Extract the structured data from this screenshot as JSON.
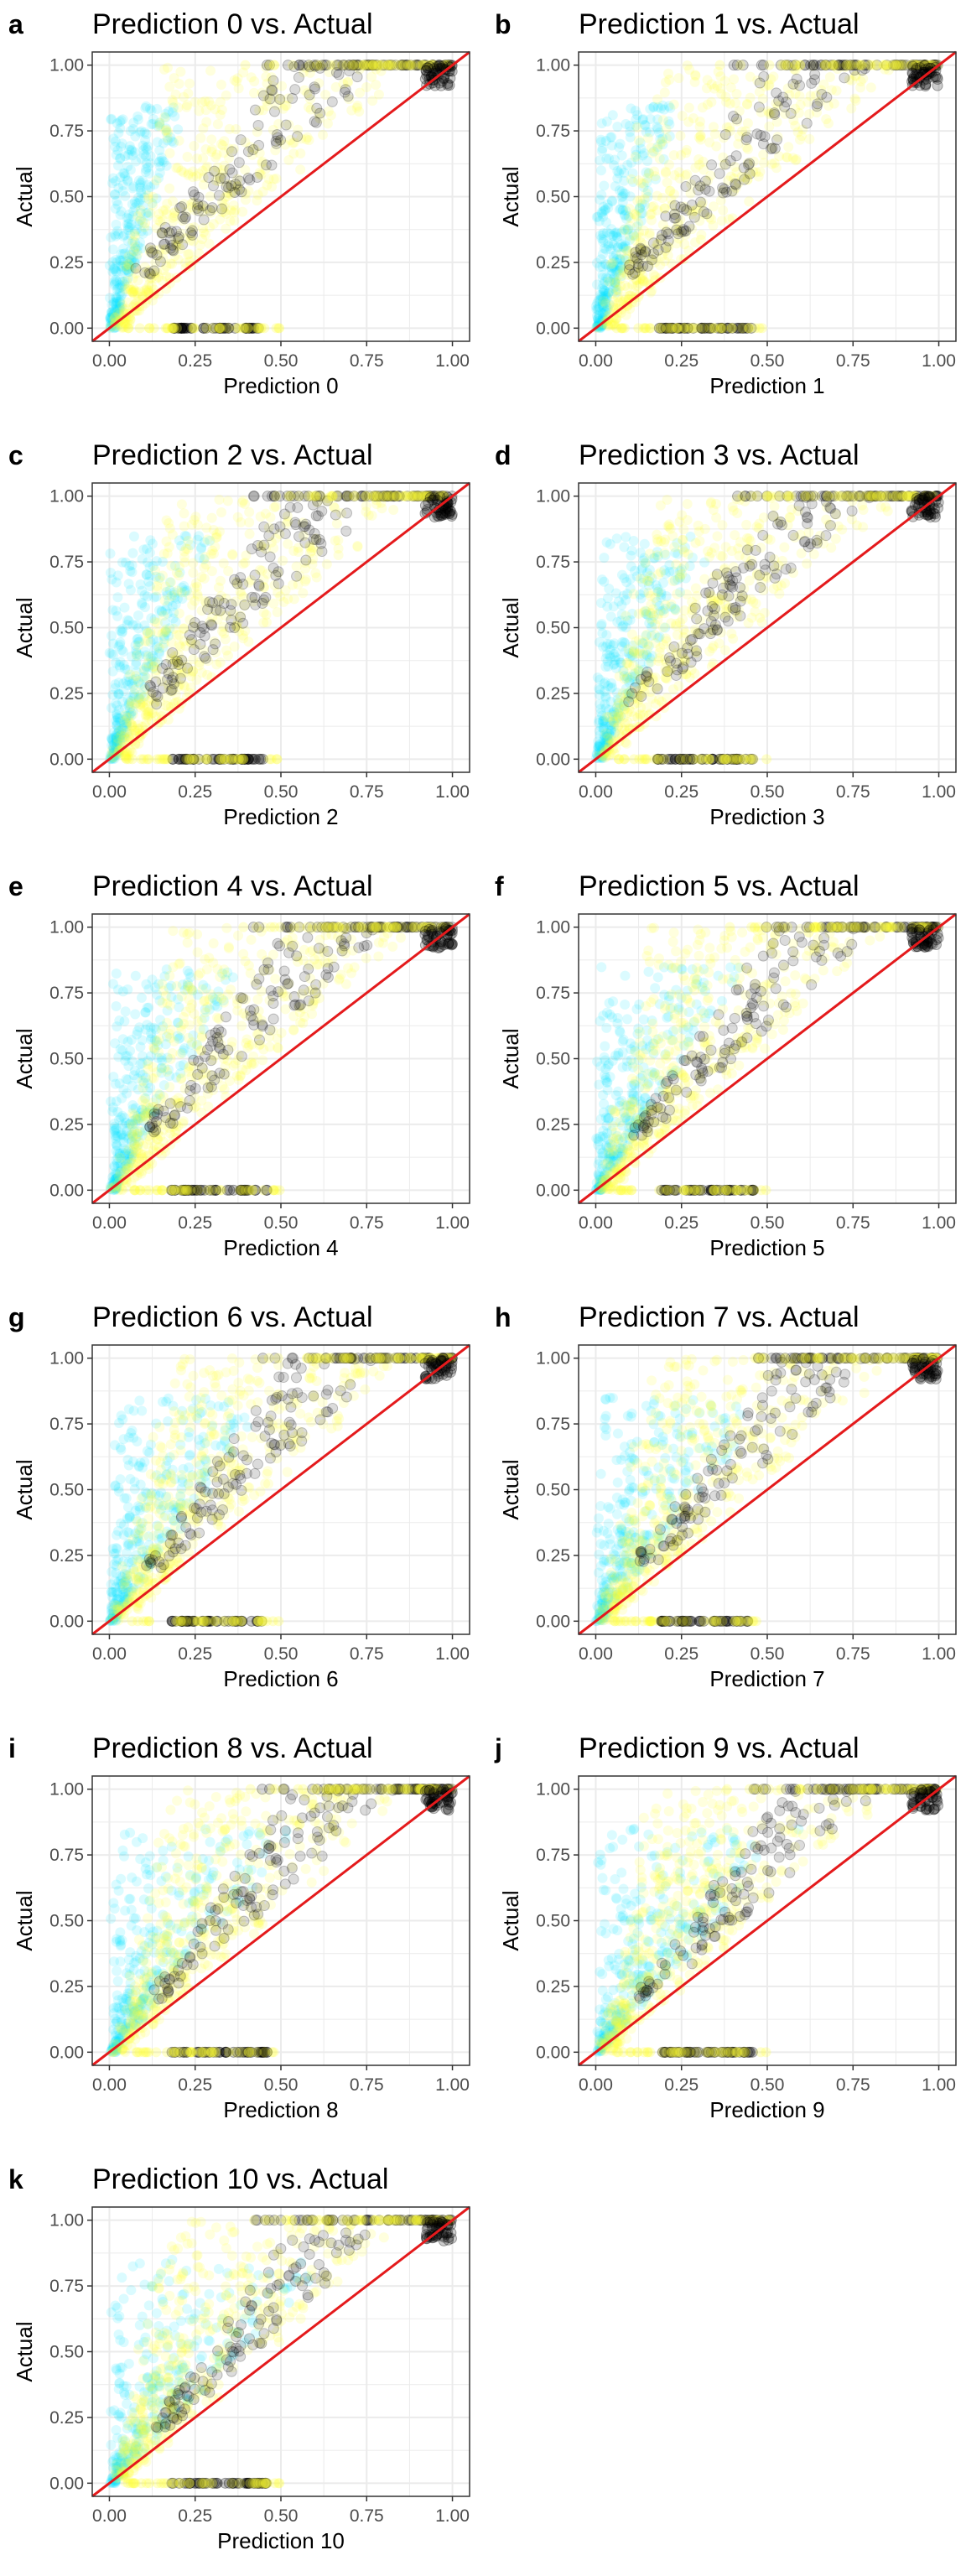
{
  "figure": {
    "colors": {
      "identity_line": "#e41a1c",
      "fit_line": "#1f3fbf",
      "grid_major": "#ebebeb",
      "panel_border": "#333333",
      "series_a": "#00e5ff",
      "series_b": "#ffff33",
      "series_c": "#000000"
    }
  },
  "chart_data": [
    {
      "letter": "a",
      "type": "scatter",
      "title": "Prediction 0 vs. Actual",
      "xlabel": "Prediction 0",
      "ylabel": "Actual",
      "xlim": [
        -0.05,
        1.05
      ],
      "ylim": [
        -0.05,
        1.05
      ],
      "xticks": [
        "0.00",
        "0.25",
        "0.50",
        "0.75",
        "1.00"
      ],
      "yticks": [
        "0.00",
        "0.25",
        "0.50",
        "0.75",
        "1.00"
      ],
      "grid": true,
      "reference_lines": [
        "y = x"
      ]
    },
    {
      "letter": "b",
      "type": "scatter",
      "title": "Prediction 1 vs. Actual",
      "xlabel": "Prediction 1",
      "ylabel": "Actual",
      "xlim": [
        -0.05,
        1.05
      ],
      "ylim": [
        -0.05,
        1.05
      ],
      "xticks": [
        "0.00",
        "0.25",
        "0.50",
        "0.75",
        "1.00"
      ],
      "yticks": [
        "0.00",
        "0.25",
        "0.50",
        "0.75",
        "1.00"
      ],
      "grid": true,
      "reference_lines": [
        "y = x"
      ]
    },
    {
      "letter": "c",
      "type": "scatter",
      "title": "Prediction 2 vs. Actual",
      "xlabel": "Prediction 2",
      "ylabel": "Actual",
      "xlim": [
        -0.05,
        1.05
      ],
      "ylim": [
        -0.05,
        1.05
      ],
      "xticks": [
        "0.00",
        "0.25",
        "0.50",
        "0.75",
        "1.00"
      ],
      "yticks": [
        "0.00",
        "0.25",
        "0.50",
        "0.75",
        "1.00"
      ],
      "grid": true,
      "reference_lines": [
        "y = x"
      ]
    },
    {
      "letter": "d",
      "type": "scatter",
      "title": "Prediction 3 vs. Actual",
      "xlabel": "Prediction 3",
      "ylabel": "Actual",
      "xlim": [
        -0.05,
        1.05
      ],
      "ylim": [
        -0.05,
        1.05
      ],
      "xticks": [
        "0.00",
        "0.25",
        "0.50",
        "0.75",
        "1.00"
      ],
      "yticks": [
        "0.00",
        "0.25",
        "0.50",
        "0.75",
        "1.00"
      ],
      "grid": true,
      "reference_lines": [
        "y = x"
      ]
    },
    {
      "letter": "e",
      "type": "scatter",
      "title": "Prediction 4 vs. Actual",
      "xlabel": "Prediction 4",
      "ylabel": "Actual",
      "xlim": [
        -0.05,
        1.05
      ],
      "ylim": [
        -0.05,
        1.05
      ],
      "xticks": [
        "0.00",
        "0.25",
        "0.50",
        "0.75",
        "1.00"
      ],
      "yticks": [
        "0.00",
        "0.25",
        "0.50",
        "0.75",
        "1.00"
      ],
      "grid": true,
      "reference_lines": [
        "y = x"
      ]
    },
    {
      "letter": "f",
      "type": "scatter",
      "title": "Prediction 5 vs. Actual",
      "xlabel": "Prediction 5",
      "ylabel": "Actual",
      "xlim": [
        -0.05,
        1.05
      ],
      "ylim": [
        -0.05,
        1.05
      ],
      "xticks": [
        "0.00",
        "0.25",
        "0.50",
        "0.75",
        "1.00"
      ],
      "yticks": [
        "0.00",
        "0.25",
        "0.50",
        "0.75",
        "1.00"
      ],
      "grid": true,
      "reference_lines": [
        "y = x"
      ]
    },
    {
      "letter": "g",
      "type": "scatter",
      "title": "Prediction 6 vs. Actual",
      "xlabel": "Prediction 6",
      "ylabel": "Actual",
      "xlim": [
        -0.05,
        1.05
      ],
      "ylim": [
        -0.05,
        1.05
      ],
      "xticks": [
        "0.00",
        "0.25",
        "0.50",
        "0.75",
        "1.00"
      ],
      "yticks": [
        "0.00",
        "0.25",
        "0.50",
        "0.75",
        "1.00"
      ],
      "grid": true,
      "reference_lines": [
        "y = x"
      ]
    },
    {
      "letter": "h",
      "type": "scatter",
      "title": "Prediction 7 vs. Actual",
      "xlabel": "Prediction 7",
      "ylabel": "Actual",
      "xlim": [
        -0.05,
        1.05
      ],
      "ylim": [
        -0.05,
        1.05
      ],
      "xticks": [
        "0.00",
        "0.25",
        "0.50",
        "0.75",
        "1.00"
      ],
      "yticks": [
        "0.00",
        "0.25",
        "0.50",
        "0.75",
        "1.00"
      ],
      "grid": true,
      "reference_lines": [
        "y = x"
      ]
    },
    {
      "letter": "i",
      "type": "scatter",
      "title": "Prediction 8 vs. Actual",
      "xlabel": "Prediction 8",
      "ylabel": "Actual",
      "xlim": [
        -0.05,
        1.05
      ],
      "ylim": [
        -0.05,
        1.05
      ],
      "xticks": [
        "0.00",
        "0.25",
        "0.50",
        "0.75",
        "1.00"
      ],
      "yticks": [
        "0.00",
        "0.25",
        "0.50",
        "0.75",
        "1.00"
      ],
      "grid": true,
      "reference_lines": [
        "y = x"
      ]
    },
    {
      "letter": "j",
      "type": "scatter",
      "title": "Prediction 9 vs. Actual",
      "xlabel": "Prediction 9",
      "ylabel": "Actual",
      "xlim": [
        -0.05,
        1.05
      ],
      "ylim": [
        -0.05,
        1.05
      ],
      "xticks": [
        "0.00",
        "0.25",
        "0.50",
        "0.75",
        "1.00"
      ],
      "yticks": [
        "0.00",
        "0.25",
        "0.50",
        "0.75",
        "1.00"
      ],
      "grid": true,
      "reference_lines": [
        "y = x"
      ]
    },
    {
      "letter": "k",
      "type": "scatter",
      "title": "Prediction 10 vs. Actual",
      "xlabel": "Prediction 10",
      "ylabel": "Actual",
      "xlim": [
        -0.05,
        1.05
      ],
      "ylim": [
        -0.05,
        1.05
      ],
      "xticks": [
        "0.00",
        "0.25",
        "0.50",
        "0.75",
        "1.00"
      ],
      "yticks": [
        "0.00",
        "0.25",
        "0.50",
        "0.75",
        "1.00"
      ],
      "grid": true,
      "reference_lines": [
        "y = x"
      ]
    }
  ]
}
